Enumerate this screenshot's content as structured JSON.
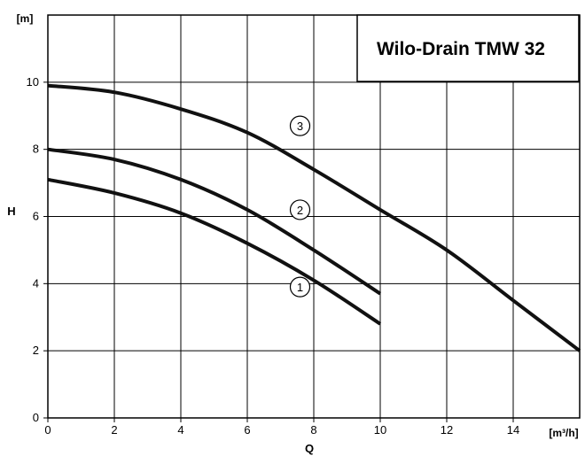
{
  "chart_data": {
    "type": "line",
    "title": "Wilo-Drain TMW 32",
    "xlabel": "Q",
    "ylabel": "H",
    "x_unit": "[m³/h]",
    "y_unit": "[m]",
    "xlim": [
      0,
      16
    ],
    "ylim": [
      0,
      12
    ],
    "x_ticks": [
      0,
      2,
      4,
      6,
      8,
      10,
      12,
      14
    ],
    "y_ticks": [
      0,
      2,
      4,
      6,
      8,
      10
    ],
    "grid": true,
    "series": [
      {
        "name": "1",
        "x": [
          0,
          2,
          4,
          6,
          8,
          10
        ],
        "y": [
          7.1,
          6.7,
          6.1,
          5.2,
          4.1,
          2.8
        ],
        "label_at": [
          7,
          3.9
        ]
      },
      {
        "name": "2",
        "x": [
          0,
          2,
          4,
          6,
          8,
          10
        ],
        "y": [
          8.0,
          7.7,
          7.1,
          6.2,
          5.0,
          3.7
        ],
        "label_at": [
          7,
          6.2
        ]
      },
      {
        "name": "3",
        "x": [
          0,
          2,
          4,
          6,
          8,
          10,
          12,
          14,
          16
        ],
        "y": [
          9.9,
          9.7,
          9.2,
          8.5,
          7.4,
          6.2,
          5.0,
          3.5,
          2.0
        ],
        "label_at": [
          7,
          8.7
        ]
      }
    ]
  }
}
